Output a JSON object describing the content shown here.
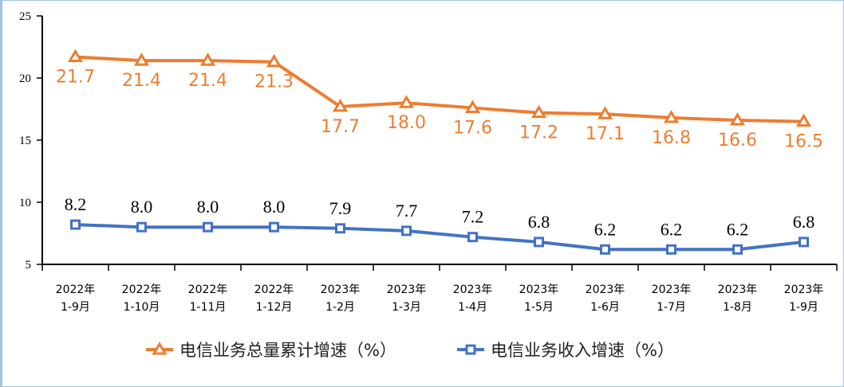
{
  "chart_data": {
    "type": "line",
    "categories": [
      [
        "2022年",
        "1-9月"
      ],
      [
        "2022年",
        "1-10月"
      ],
      [
        "2022年",
        "1-11月"
      ],
      [
        "2022年",
        "1-12月"
      ],
      [
        "2023年",
        "1-2月"
      ],
      [
        "2023年",
        "1-3月"
      ],
      [
        "2023年",
        "1-4月"
      ],
      [
        "2023年",
        "1-5月"
      ],
      [
        "2023年",
        "1-6月"
      ],
      [
        "2023年",
        "1-7月"
      ],
      [
        "2023年",
        "1-8月"
      ],
      [
        "2023年",
        "1-9月"
      ]
    ],
    "ylim": [
      5,
      25
    ],
    "yticks": [
      5,
      10,
      15,
      20,
      25
    ],
    "grid": false,
    "legend_position": "bottom",
    "series": [
      {
        "name": "电信业务总量累计增速（%）",
        "color": "#ED7D31",
        "marker": "triangle",
        "values": [
          21.7,
          21.4,
          21.4,
          21.3,
          17.7,
          18.0,
          17.6,
          17.2,
          17.1,
          16.8,
          16.6,
          16.5
        ],
        "labels": [
          "21.7",
          "21.4",
          "21.4",
          "21.3",
          "17.7",
          "18.0",
          "17.6",
          "17.2",
          "17.1",
          "16.8",
          "16.6",
          "16.5"
        ]
      },
      {
        "name": "电信业务收入增速（%）",
        "color": "#4472C4",
        "marker": "square",
        "values": [
          8.2,
          8.0,
          8.0,
          8.0,
          7.9,
          7.7,
          7.2,
          6.8,
          6.2,
          6.2,
          6.2,
          6.8
        ],
        "labels": [
          "8.2",
          "8.0",
          "8.0",
          "8.0",
          "7.9",
          "7.7",
          "7.2",
          "6.8",
          "6.2",
          "6.2",
          "6.2",
          "6.8"
        ]
      }
    ]
  }
}
